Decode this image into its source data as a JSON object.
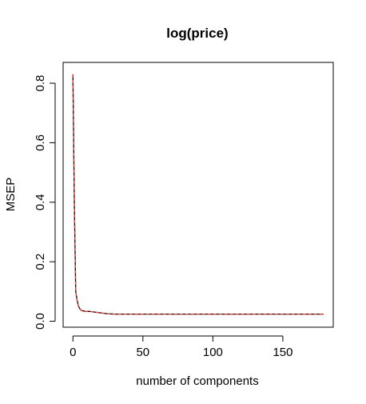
{
  "chart_data": {
    "type": "line",
    "title": "log(price)",
    "xlabel": "number of components",
    "ylabel": "MSEP",
    "xlim": [
      -7,
      186
    ],
    "ylim": [
      -0.02,
      0.87
    ],
    "x_ticks": [
      0,
      50,
      100,
      150
    ],
    "x_tick_labels": [
      "0",
      "50",
      "100",
      "150"
    ],
    "y_ticks": [
      0.0,
      0.2,
      0.4,
      0.6,
      0.8
    ],
    "y_tick_labels": [
      "0.0",
      "0.2",
      "0.4",
      "0.6",
      "0.8"
    ],
    "grid": false,
    "legend": "none",
    "series": [
      {
        "color": "#000000",
        "style": "solid",
        "x": [
          0,
          1,
          2,
          3,
          4,
          5,
          6,
          8,
          10,
          12,
          15,
          20,
          25,
          30,
          40,
          60,
          80,
          100,
          120,
          140,
          160,
          179
        ],
        "y": [
          0.83,
          0.4,
          0.1,
          0.07,
          0.05,
          0.042,
          0.036,
          0.034,
          0.033,
          0.033,
          0.031,
          0.028,
          0.025,
          0.024,
          0.024,
          0.024,
          0.024,
          0.024,
          0.024,
          0.024,
          0.024,
          0.024
        ]
      },
      {
        "color": "#e8413a",
        "style": "dashed",
        "x": [
          0,
          1,
          2,
          3,
          4,
          5,
          6,
          8,
          10,
          12,
          15,
          20,
          25,
          30,
          40,
          60,
          80,
          100,
          120,
          140,
          160,
          179
        ],
        "y": [
          0.83,
          0.4,
          0.1,
          0.07,
          0.05,
          0.042,
          0.036,
          0.034,
          0.033,
          0.033,
          0.031,
          0.028,
          0.025,
          0.024,
          0.024,
          0.024,
          0.024,
          0.024,
          0.024,
          0.024,
          0.024,
          0.024
        ]
      }
    ]
  }
}
